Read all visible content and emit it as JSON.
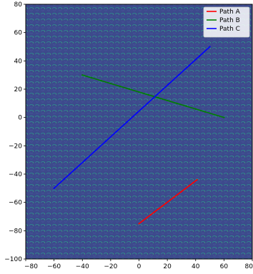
{
  "chart_data": {
    "type": "line",
    "title": "",
    "xlabel": "",
    "ylabel": "",
    "xlim": [
      -80,
      80
    ],
    "ylim": [
      -100,
      80
    ],
    "x_ticks": [
      -80,
      -60,
      -40,
      -20,
      0,
      20,
      40,
      60,
      80
    ],
    "y_ticks": [
      -100,
      -80,
      -60,
      -40,
      -20,
      0,
      20,
      40,
      60,
      80
    ],
    "x_tick_labels": [
      "−80",
      "−60",
      "−40",
      "−20",
      "0",
      "20",
      "40",
      "60",
      "80"
    ],
    "y_tick_labels": [
      "−100",
      "−80",
      "−60",
      "−40",
      "−20",
      "0",
      "20",
      "40",
      "60",
      "80"
    ],
    "grid": false,
    "legend": "top-right",
    "background": {
      "description": "dense field of small curved arrows (vector field) on dark purple",
      "base_color": "#3d4a8c",
      "mark_colors": [
        "#2a9d8f",
        "#3cb371",
        "#5a6bb0"
      ]
    },
    "series": [
      {
        "name": "Path A",
        "color": "#ff0000",
        "x": [
          0,
          41
        ],
        "y": [
          -75,
          -44
        ]
      },
      {
        "name": "Path B",
        "color": "#008000",
        "x": [
          -40,
          60
        ],
        "y": [
          30,
          0
        ]
      },
      {
        "name": "Path C",
        "color": "#0000ff",
        "x": [
          -60,
          50
        ],
        "y": [
          -50,
          50
        ]
      }
    ]
  }
}
